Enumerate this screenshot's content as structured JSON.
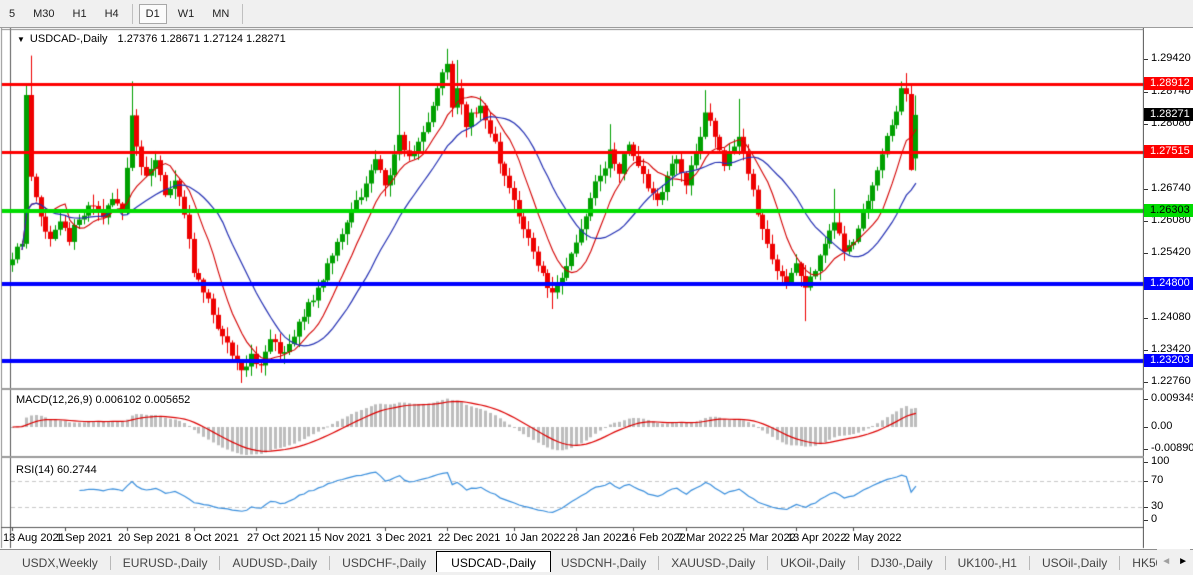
{
  "toolbar": {
    "timeframes": [
      {
        "label": "5",
        "active": false
      },
      {
        "label": "M30",
        "active": false
      },
      {
        "label": "H1",
        "active": false
      },
      {
        "label": "H4",
        "active": false
      },
      {
        "label": "D1",
        "active": true
      },
      {
        "label": "W1",
        "active": false
      },
      {
        "label": "MN",
        "active": false
      }
    ]
  },
  "chart": {
    "title_symbol": "USDCAD-,Daily",
    "ohlc_text": "1.27376 1.28671 1.27124 1.28271",
    "macd_label": "MACD(12,26,9)",
    "macd_values": "0.006102 0.005652",
    "rsi_label": "RSI(14)",
    "rsi_value": "60.2744"
  },
  "chart_data": {
    "type": "candlestick_with_indicators",
    "symbol": "USDCAD",
    "timeframe": "Daily",
    "current_bar": {
      "open": 1.27376,
      "high": 1.28671,
      "low": 1.27124,
      "close": 1.28271
    },
    "colors": {
      "bull": "#00a000",
      "bear": "#ee0000",
      "ma_fast": "#d40000",
      "ma_slow": "#2531b4",
      "macd_hist": "#bdbdbd",
      "macd_signal": "#dd0000",
      "rsi_line": "#3a8fdd",
      "rsi_dash": "#c8c8c8"
    },
    "levels": [
      {
        "label": "1.28912",
        "price": 1.28912,
        "line": true,
        "color": "#fe0000",
        "width": 3,
        "badge_bg": "#fe0000",
        "badge_fg": "#ffffff"
      },
      {
        "label": "1.28271",
        "price": 1.28271,
        "line": false,
        "color": "#000000",
        "width": 0,
        "badge_bg": "#000000",
        "badge_fg": "#ffffff"
      },
      {
        "label": "1.27515",
        "price": 1.27515,
        "line": true,
        "color": "#fe0000",
        "width": 3,
        "badge_bg": "#fe0000",
        "badge_fg": "#ffffff"
      },
      {
        "label": "1.26303",
        "price": 1.26303,
        "line": true,
        "color": "#00dc00",
        "width": 4,
        "badge_bg": "#00dc00",
        "badge_fg": "#000000"
      },
      {
        "label": "1.24800",
        "price": 1.248,
        "line": true,
        "color": "#0000ff",
        "width": 4,
        "badge_bg": "#0000ff",
        "badge_fg": "#ffffff"
      },
      {
        "label": "1.23203",
        "price": 1.23203,
        "line": true,
        "color": "#0000ff",
        "width": 4,
        "badge_bg": "#0000ff",
        "badge_fg": "#ffffff"
      }
    ],
    "price_axis_ticks": [
      "1.29420",
      "1.28740",
      "1.28080",
      "1.27420",
      "1.26740",
      "1.26080",
      "1.25420",
      "1.24080",
      "1.23420",
      "1.22760"
    ],
    "macd_axis": [
      "0.009345",
      "0.00",
      "-0.008902"
    ],
    "rsi_axis": [
      "100",
      "70",
      "30",
      "0"
    ],
    "rsi_levels": [
      70,
      30
    ],
    "moving_averages": [
      {
        "period": 9,
        "color": "#d40000"
      },
      {
        "period": 20,
        "color": "#2531b4"
      }
    ],
    "candles": {
      "count": 190,
      "close_anchors": [
        [
          0,
          1.253
        ],
        [
          2,
          1.2562
        ],
        [
          3,
          1.2868
        ],
        [
          4,
          1.27
        ],
        [
          6,
          1.2618
        ],
        [
          8,
          1.2572
        ],
        [
          10,
          1.2608
        ],
        [
          12,
          1.2566
        ],
        [
          14,
          1.2612
        ],
        [
          17,
          1.264
        ],
        [
          19,
          1.2616
        ],
        [
          21,
          1.2654
        ],
        [
          23,
          1.2628
        ],
        [
          25,
          1.2826
        ],
        [
          26,
          1.2762
        ],
        [
          28,
          1.2702
        ],
        [
          30,
          1.2734
        ],
        [
          32,
          1.2662
        ],
        [
          34,
          1.2692
        ],
        [
          36,
          1.2622
        ],
        [
          38,
          1.2502
        ],
        [
          40,
          1.2462
        ],
        [
          42,
          1.2416
        ],
        [
          44,
          1.2372
        ],
        [
          46,
          1.2332
        ],
        [
          48,
          1.2302
        ],
        [
          50,
          1.2336
        ],
        [
          52,
          1.2312
        ],
        [
          54,
          1.2366
        ],
        [
          56,
          1.2336
        ],
        [
          58,
          1.2356
        ],
        [
          60,
          1.2402
        ],
        [
          62,
          1.2442
        ],
        [
          64,
          1.2472
        ],
        [
          66,
          1.2522
        ],
        [
          68,
          1.2566
        ],
        [
          70,
          1.2606
        ],
        [
          72,
          1.2652
        ],
        [
          74,
          1.2686
        ],
        [
          76,
          1.2736
        ],
        [
          78,
          1.2682
        ],
        [
          80,
          1.2746
        ],
        [
          81,
          1.2786
        ],
        [
          83,
          1.2742
        ],
        [
          85,
          1.2772
        ],
        [
          87,
          1.2812
        ],
        [
          89,
          1.2882
        ],
        [
          91,
          1.2932
        ],
        [
          92,
          1.2842
        ],
        [
          93,
          1.2882
        ],
        [
          95,
          1.2802
        ],
        [
          96,
          1.2832
        ],
        [
          98,
          1.2846
        ],
        [
          99,
          1.2816
        ],
        [
          101,
          1.2772
        ],
        [
          103,
          1.2702
        ],
        [
          105,
          1.2652
        ],
        [
          107,
          1.2592
        ],
        [
          109,
          1.2546
        ],
        [
          111,
          1.2502
        ],
        [
          113,
          1.2462
        ],
        [
          115,
          1.2492
        ],
        [
          117,
          1.2542
        ],
        [
          119,
          1.2592
        ],
        [
          121,
          1.2656
        ],
        [
          123,
          1.2702
        ],
        [
          125,
          1.2756
        ],
        [
          127,
          1.2706
        ],
        [
          129,
          1.2766
        ],
        [
          131,
          1.2722
        ],
        [
          133,
          1.2676
        ],
        [
          135,
          1.2652
        ],
        [
          137,
          1.2702
        ],
        [
          139,
          1.2736
        ],
        [
          141,
          1.2682
        ],
        [
          143,
          1.2752
        ],
        [
          145,
          1.2832
        ],
        [
          147,
          1.2782
        ],
        [
          149,
          1.2722
        ],
        [
          151,
          1.2762
        ],
        [
          152,
          1.2782
        ],
        [
          154,
          1.2706
        ],
        [
          156,
          1.2622
        ],
        [
          158,
          1.2562
        ],
        [
          160,
          1.2506
        ],
        [
          162,
          1.2482
        ],
        [
          164,
          1.2522
        ],
        [
          166,
          1.2472
        ],
        [
          168,
          1.2506
        ],
        [
          170,
          1.2562
        ],
        [
          172,
          1.2606
        ],
        [
          174,
          1.2546
        ],
        [
          176,
          1.2566
        ],
        [
          178,
          1.2626
        ],
        [
          180,
          1.2682
        ],
        [
          182,
          1.2746
        ],
        [
          184,
          1.2806
        ],
        [
          186,
          1.2882
        ],
        [
          187,
          1.287
        ],
        [
          188,
          1.2714
        ],
        [
          189,
          1.28271
        ]
      ],
      "high_spikes": {
        "4": 1.2949,
        "25": 1.2896,
        "81": 1.289,
        "91": 1.2963,
        "93": 1.294,
        "125": 1.2808,
        "145": 1.2878,
        "152": 1.286,
        "172": 1.2675,
        "187": 1.2913,
        "189": 1.28671
      },
      "low_spikes": {
        "48": 1.2276,
        "113": 1.2428,
        "166": 1.2403,
        "188": 1.27124,
        "189": 1.27124
      },
      "open_overrides": {
        "189": 1.27376
      }
    },
    "x_labels": [
      {
        "text": "13 Aug 2021",
        "i": 0
      },
      {
        "text": "1 Sep 2021",
        "i": 11
      },
      {
        "text": "20 Sep 2021",
        "i": 24
      },
      {
        "text": "8 Oct 2021",
        "i": 38
      },
      {
        "text": "27 Oct 2021",
        "i": 51
      },
      {
        "text": "15 Nov 2021",
        "i": 64
      },
      {
        "text": "3 Dec 2021",
        "i": 78
      },
      {
        "text": "22 Dec 2021",
        "i": 91
      },
      {
        "text": "10 Jan 2022",
        "i": 105
      },
      {
        "text": "28 Jan 2022",
        "i": 118
      },
      {
        "text": "16 Feb 2022",
        "i": 130
      },
      {
        "text": "7 Mar 2022",
        "i": 141
      },
      {
        "text": "25 Mar 2022",
        "i": 153
      },
      {
        "text": "13 Apr 2022",
        "i": 164
      },
      {
        "text": "2 May 2022",
        "i": 176
      }
    ]
  },
  "tabs": {
    "items": [
      {
        "label": "USDX,Weekly",
        "active": false
      },
      {
        "label": "EURUSD-,Daily",
        "active": false
      },
      {
        "label": "AUDUSD-,Daily",
        "active": false
      },
      {
        "label": "USDCHF-,Daily",
        "active": false
      },
      {
        "label": "USDCAD-,Daily",
        "active": true
      },
      {
        "label": "USDCNH-,Daily",
        "active": false
      },
      {
        "label": "XAUUSD-,Daily",
        "active": false
      },
      {
        "label": "UKOil-,Daily",
        "active": false
      },
      {
        "label": "DJ30-,Daily",
        "active": false
      },
      {
        "label": "UK100-,H1",
        "active": false
      },
      {
        "label": "USOil-,Daily",
        "active": false
      },
      {
        "label": "HK50-",
        "active": false
      }
    ],
    "scroll_left_icon": "◄",
    "scroll_right_icon": "►"
  }
}
